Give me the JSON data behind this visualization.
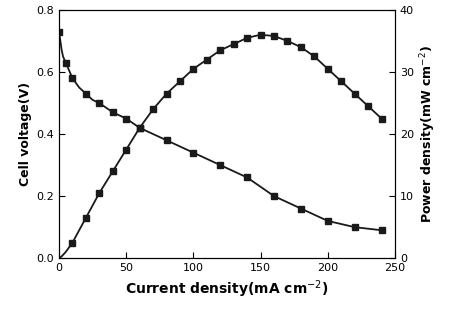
{
  "voltage_x": [
    0,
    1,
    2,
    3,
    5,
    8,
    10,
    15,
    20,
    25,
    30,
    40,
    50,
    60,
    70,
    80,
    90,
    100,
    110,
    120,
    130,
    140,
    150,
    160,
    170,
    180,
    190,
    200,
    210,
    220,
    230,
    240
  ],
  "voltage_y": [
    0.73,
    0.7,
    0.67,
    0.65,
    0.63,
    0.6,
    0.58,
    0.55,
    0.53,
    0.51,
    0.5,
    0.47,
    0.45,
    0.42,
    0.4,
    0.38,
    0.36,
    0.34,
    0.32,
    0.3,
    0.28,
    0.26,
    0.23,
    0.2,
    0.18,
    0.16,
    0.14,
    0.12,
    0.11,
    0.1,
    0.095,
    0.09
  ],
  "voltage_marker_x": [
    0,
    5,
    10,
    20,
    30,
    40,
    50,
    60,
    80,
    100,
    120,
    140,
    160,
    180,
    200,
    220,
    240
  ],
  "voltage_marker_y": [
    0.73,
    0.63,
    0.58,
    0.53,
    0.5,
    0.47,
    0.45,
    0.42,
    0.38,
    0.34,
    0.3,
    0.26,
    0.2,
    0.16,
    0.12,
    0.1,
    0.09
  ],
  "power_x": [
    0,
    2,
    5,
    10,
    15,
    20,
    25,
    30,
    40,
    50,
    60,
    70,
    80,
    90,
    100,
    110,
    120,
    130,
    140,
    150,
    160,
    170,
    180,
    190,
    200,
    210,
    220,
    230,
    240
  ],
  "power_y": [
    0,
    0.3,
    1.0,
    2.5,
    4.5,
    6.5,
    8.5,
    10.5,
    14.0,
    17.5,
    21.0,
    24.0,
    26.5,
    28.5,
    30.5,
    32.0,
    33.5,
    34.5,
    35.5,
    36.0,
    35.8,
    35.0,
    34.0,
    32.5,
    30.5,
    28.5,
    26.5,
    24.5,
    22.5
  ],
  "power_marker_x": [
    10,
    20,
    30,
    40,
    50,
    60,
    70,
    80,
    90,
    100,
    110,
    120,
    130,
    140,
    150,
    160,
    170,
    180,
    190,
    200,
    210,
    220,
    230,
    240
  ],
  "power_marker_y": [
    2.5,
    6.5,
    10.5,
    14.0,
    17.5,
    21.0,
    24.0,
    26.5,
    28.5,
    30.5,
    32.0,
    33.5,
    34.5,
    35.5,
    36.0,
    35.8,
    35.0,
    34.0,
    32.5,
    30.5,
    28.5,
    26.5,
    24.5,
    22.5
  ],
  "xlabel": "Current density(mA cm$^{-2}$)",
  "ylabel_left": "Cell voltage(V)",
  "ylabel_right": "Power density(mW cm$^{-2}$)",
  "xlim": [
    0,
    250
  ],
  "ylim_left": [
    0.0,
    0.8
  ],
  "ylim_right": [
    0,
    40
  ],
  "xticks": [
    0,
    50,
    100,
    150,
    200,
    250
  ],
  "yticks_left": [
    0.0,
    0.2,
    0.4,
    0.6,
    0.8
  ],
  "yticks_right": [
    0,
    10,
    20,
    30,
    40
  ],
  "line_color": "#1a1a1a",
  "marker": "s",
  "markersize": 4,
  "linewidth": 1.3,
  "xlabel_fontsize": 10,
  "ylabel_fontsize": 9,
  "tick_labelsize": 8
}
